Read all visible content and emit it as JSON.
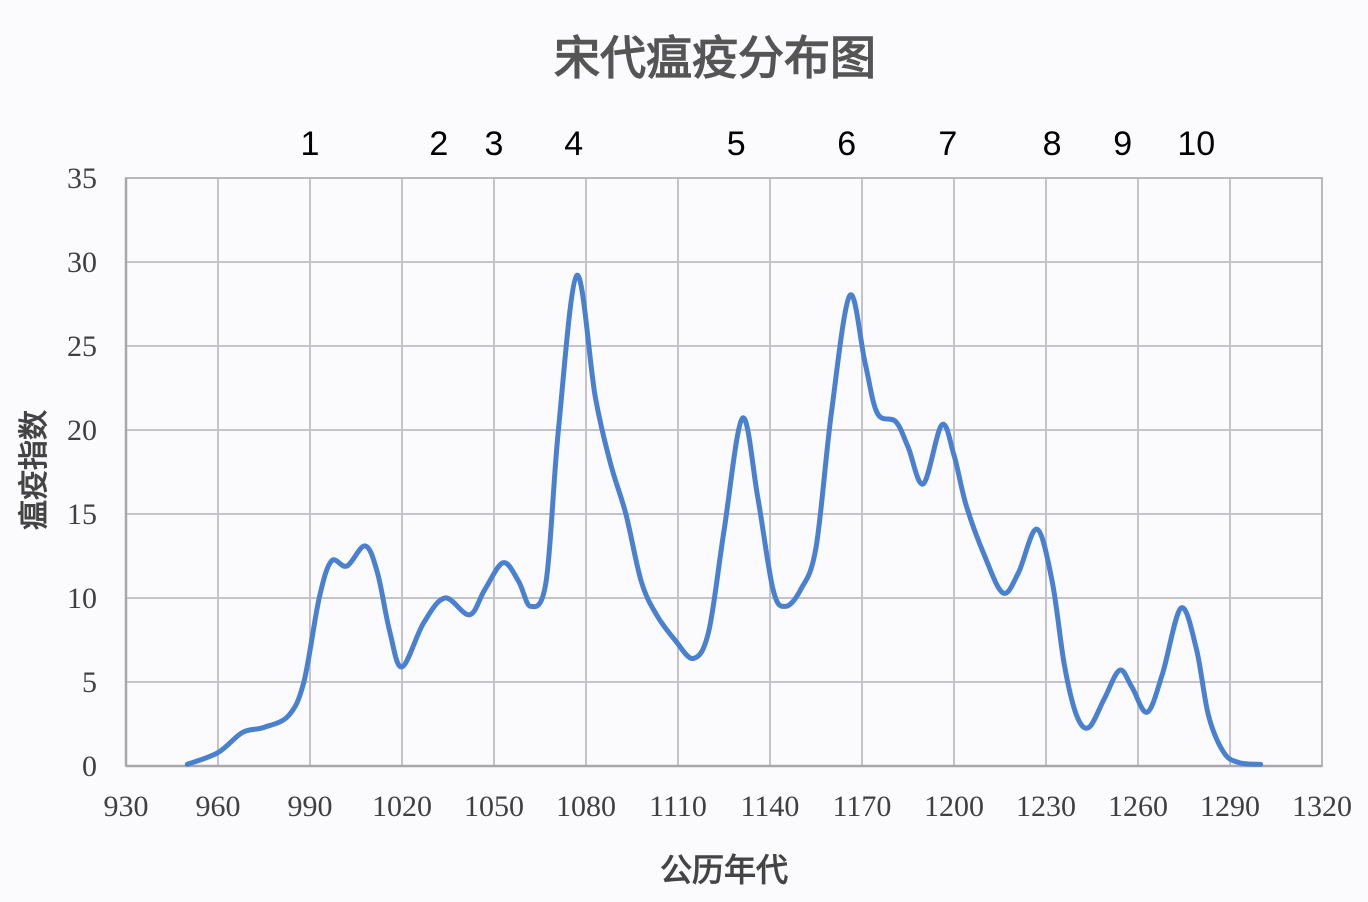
{
  "chart_data": {
    "type": "line",
    "title": "宋代瘟疫分布图",
    "xlabel": "公历年代",
    "ylabel": "瘟疫指数",
    "xlim": [
      930,
      1320
    ],
    "ylim": [
      0,
      35
    ],
    "x_ticks": [
      930,
      960,
      990,
      1020,
      1050,
      1080,
      1110,
      1140,
      1170,
      1200,
      1230,
      1260,
      1290,
      1320
    ],
    "y_ticks": [
      0,
      5,
      10,
      15,
      20,
      25,
      30,
      35
    ],
    "grid": true,
    "smooth": true,
    "legend": "none",
    "line_color": "#4a80d0",
    "series": [
      {
        "name": "瘟疫指数",
        "x": [
          950,
          960,
          968,
          975,
          983,
          988,
          993,
          997,
          1002,
          1008,
          1012,
          1016,
          1020,
          1027,
          1034,
          1042,
          1047,
          1053,
          1058,
          1062,
          1067,
          1071,
          1077,
          1083,
          1088,
          1093,
          1098,
          1103,
          1109,
          1115,
          1120,
          1125,
          1131,
          1136,
          1141,
          1145,
          1150,
          1155,
          1160,
          1166,
          1171,
          1175,
          1181,
          1185,
          1190,
          1196,
          1200,
          1204,
          1210,
          1216,
          1221,
          1227,
          1232,
          1236,
          1240,
          1244,
          1249,
          1254,
          1258,
          1263,
          1268,
          1274,
          1279,
          1283,
          1288,
          1293,
          1300
        ],
        "values": [
          0.1,
          0.8,
          2.0,
          2.3,
          3.0,
          5.0,
          10.0,
          12.2,
          11.9,
          13.1,
          11.5,
          8.0,
          5.9,
          8.5,
          10.0,
          9.0,
          10.5,
          12.1,
          11.0,
          9.5,
          11.0,
          20.0,
          29.2,
          22.0,
          18.0,
          15.0,
          11.0,
          9.0,
          7.5,
          6.4,
          8.0,
          14.0,
          20.7,
          16.0,
          10.5,
          9.5,
          10.5,
          13.0,
          21.0,
          28.0,
          24.0,
          21.0,
          20.5,
          19.0,
          16.8,
          20.3,
          18.5,
          15.5,
          12.5,
          10.3,
          11.5,
          14.1,
          11.0,
          6.0,
          3.0,
          2.3,
          4.0,
          5.7,
          4.7,
          3.2,
          5.5,
          9.4,
          7.0,
          3.0,
          0.8,
          0.2,
          0.1
        ]
      }
    ],
    "annotations": [
      {
        "label": "1",
        "x": 990
      },
      {
        "label": "2",
        "x": 1032
      },
      {
        "label": "3",
        "x": 1050
      },
      {
        "label": "4",
        "x": 1076
      },
      {
        "label": "5",
        "x": 1129
      },
      {
        "label": "6",
        "x": 1165
      },
      {
        "label": "7",
        "x": 1198
      },
      {
        "label": "8",
        "x": 1232
      },
      {
        "label": "9",
        "x": 1255
      },
      {
        "label": "10",
        "x": 1279
      }
    ]
  }
}
